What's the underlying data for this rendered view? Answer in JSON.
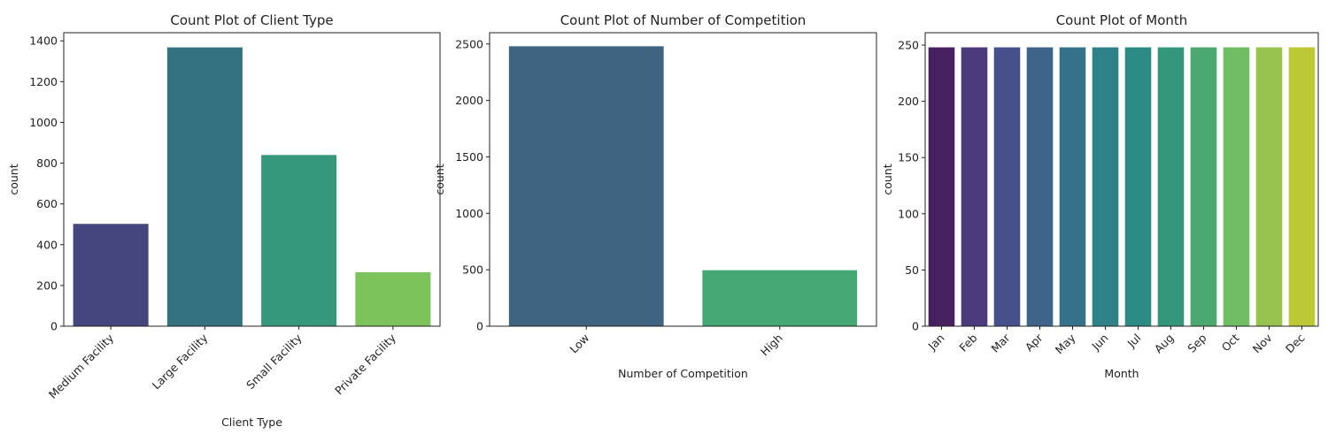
{
  "chart_data": [
    {
      "type": "bar",
      "title": "Count Plot of Client Type",
      "xlabel": "Client Type",
      "ylabel": "count",
      "categories": [
        "Medium Facility",
        "Large Facility",
        "Small Facility",
        "Private Facility"
      ],
      "values": [
        502,
        1368,
        840,
        265
      ],
      "colors": [
        "#46467e",
        "#337180",
        "#34987a",
        "#7cc35c"
      ],
      "ylim": [
        0,
        1440
      ],
      "yticks": [
        0,
        200,
        400,
        600,
        800,
        1000,
        1200,
        1400
      ],
      "grid": false
    },
    {
      "type": "bar",
      "title": "Count Plot of Number of Competition",
      "xlabel": "Number of Competition",
      "ylabel": "count",
      "categories": [
        "Low",
        "High"
      ],
      "values": [
        2480,
        496
      ],
      "colors": [
        "#3f6482",
        "#45a874"
      ],
      "ylim": [
        0,
        2600
      ],
      "yticks": [
        0,
        500,
        1000,
        1500,
        2000,
        2500
      ],
      "grid": false
    },
    {
      "type": "bar",
      "title": "Count Plot of Month",
      "xlabel": "Month",
      "ylabel": "count",
      "categories": [
        "Jan",
        "Feb",
        "Mar",
        "Apr",
        "May",
        "Jun",
        "Jul",
        "Aug",
        "Sep",
        "Oct",
        "Nov",
        "Dec"
      ],
      "values": [
        248,
        248,
        248,
        248,
        248,
        248,
        248,
        248,
        248,
        248,
        248,
        248
      ],
      "colors": [
        "#47215f",
        "#4a3b7c",
        "#46508a",
        "#3e648a",
        "#36718a",
        "#2f8188",
        "#2c8b82",
        "#33977b",
        "#4ba96f",
        "#6ebe62",
        "#96c44f",
        "#bdc837"
      ],
      "ylim": [
        0,
        261
      ],
      "yticks": [
        0,
        50,
        100,
        150,
        200,
        250
      ],
      "grid": false
    }
  ]
}
